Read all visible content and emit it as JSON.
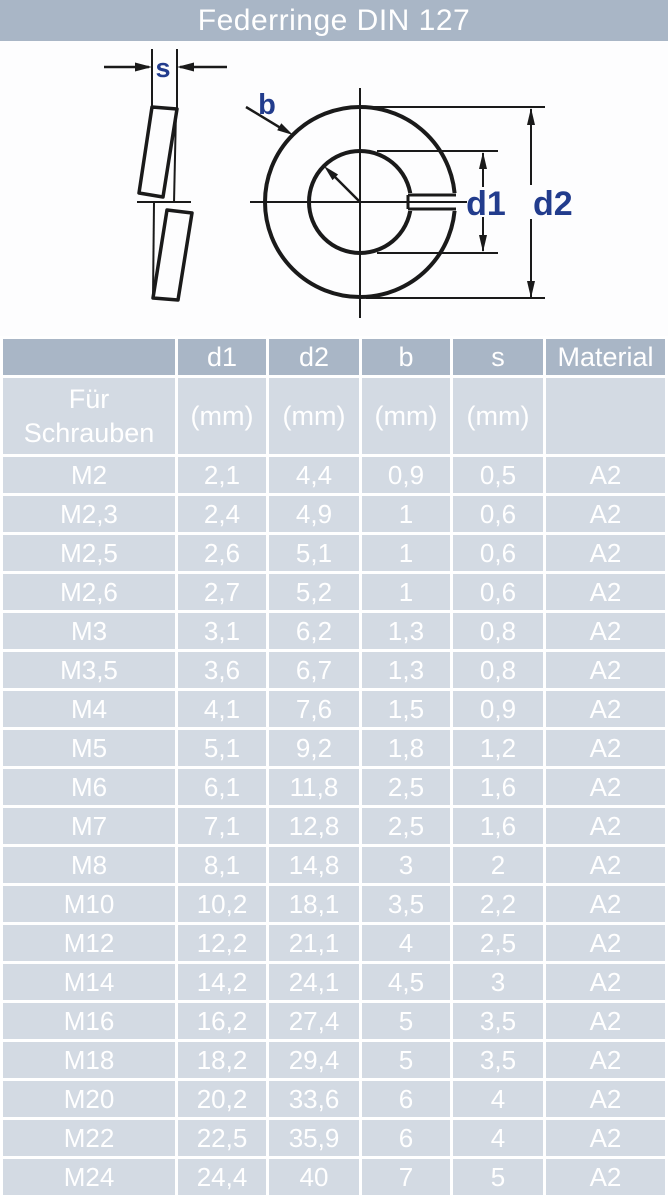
{
  "title": "Federringe DIN 127",
  "colors": {
    "header_bg": "#a9b6c6",
    "cell_bg": "#d3dae3",
    "cell_border": "#ffffff",
    "text": "#ffffff",
    "drawing_line": "#1a1a1a",
    "dim_label": "#223c8d"
  },
  "diagram": {
    "labels": {
      "s": "s",
      "b": "b",
      "d1": "d1",
      "d2": "d2"
    }
  },
  "table": {
    "header": [
      "",
      "d1",
      "d2",
      "b",
      "s",
      "Material"
    ],
    "row_label_lines": [
      "Für",
      "Schrauben"
    ],
    "units": "(mm)",
    "rows": [
      [
        "M2",
        "2,1",
        "4,4",
        "0,9",
        "0,5",
        "A2"
      ],
      [
        "M2,3",
        "2,4",
        "4,9",
        "1",
        "0,6",
        "A2"
      ],
      [
        "M2,5",
        "2,6",
        "5,1",
        "1",
        "0,6",
        "A2"
      ],
      [
        "M2,6",
        "2,7",
        "5,2",
        "1",
        "0,6",
        "A2"
      ],
      [
        "M3",
        "3,1",
        "6,2",
        "1,3",
        "0,8",
        "A2"
      ],
      [
        "M3,5",
        "3,6",
        "6,7",
        "1,3",
        "0,8",
        "A2"
      ],
      [
        "M4",
        "4,1",
        "7,6",
        "1,5",
        "0,9",
        "A2"
      ],
      [
        "M5",
        "5,1",
        "9,2",
        "1,8",
        "1,2",
        "A2"
      ],
      [
        "M6",
        "6,1",
        "11,8",
        "2,5",
        "1,6",
        "A2"
      ],
      [
        "M7",
        "7,1",
        "12,8",
        "2,5",
        "1,6",
        "A2"
      ],
      [
        "M8",
        "8,1",
        "14,8",
        "3",
        "2",
        "A2"
      ],
      [
        "M10",
        "10,2",
        "18,1",
        "3,5",
        "2,2",
        "A2"
      ],
      [
        "M12",
        "12,2",
        "21,1",
        "4",
        "2,5",
        "A2"
      ],
      [
        "M14",
        "14,2",
        "24,1",
        "4,5",
        "3",
        "A2"
      ],
      [
        "M16",
        "16,2",
        "27,4",
        "5",
        "3,5",
        "A2"
      ],
      [
        "M18",
        "18,2",
        "29,4",
        "5",
        "3,5",
        "A2"
      ],
      [
        "M20",
        "20,2",
        "33,6",
        "6",
        "4",
        "A2"
      ],
      [
        "M22",
        "22,5",
        "35,9",
        "6",
        "4",
        "A2"
      ],
      [
        "M24",
        "24,4",
        "40",
        "7",
        "5",
        "A2"
      ]
    ]
  }
}
